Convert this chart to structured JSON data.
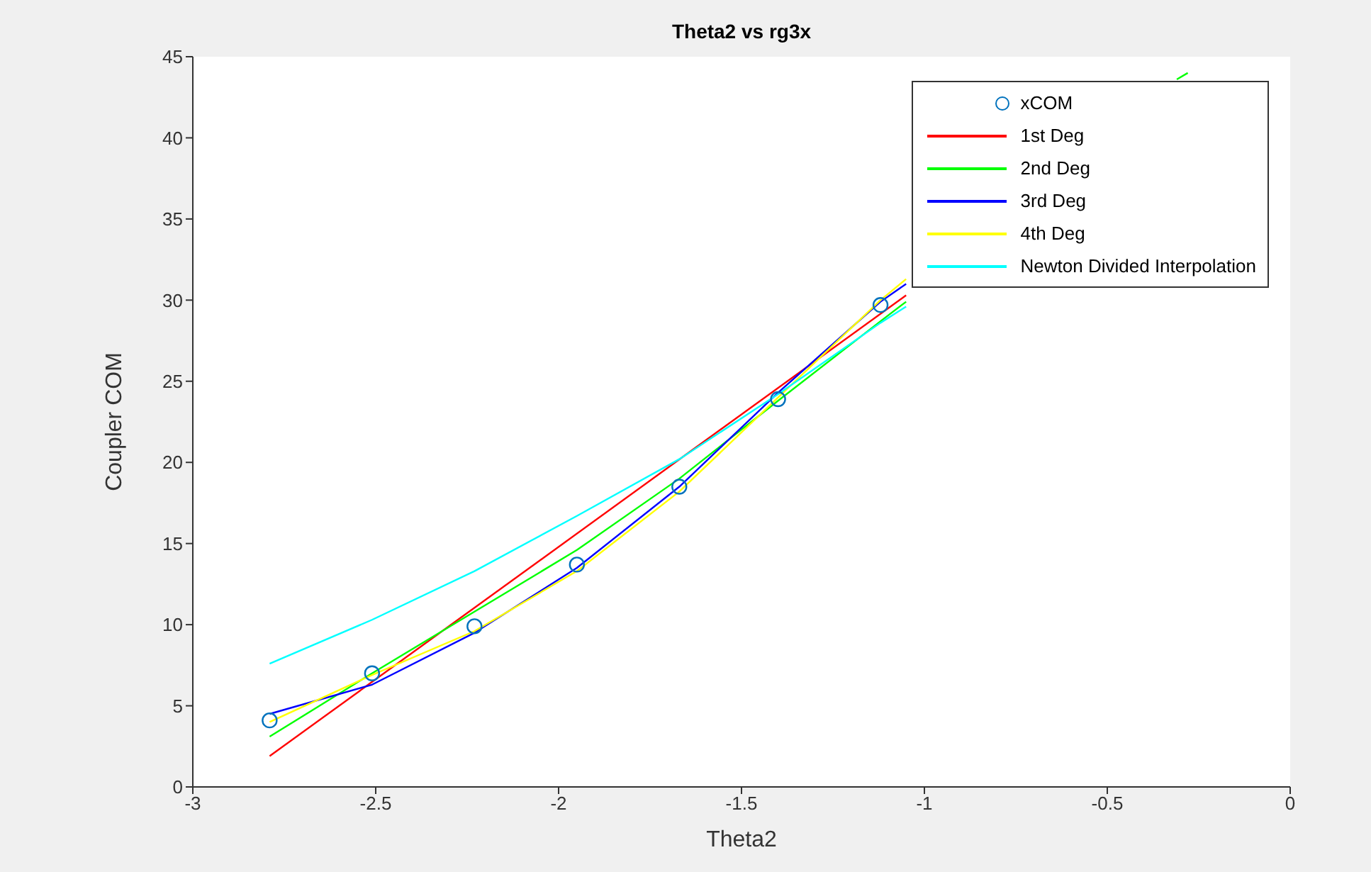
{
  "chart_data": {
    "type": "line",
    "title": "Theta2 vs rg3x",
    "xlabel": "Theta2",
    "ylabel": "Coupler COM",
    "xlim": [
      -3,
      0
    ],
    "xticks": [
      -3,
      -2.5,
      -2,
      -1.5,
      -1,
      -0.5,
      0
    ],
    "ylim": [
      0,
      45
    ],
    "yticks": [
      0,
      5,
      10,
      15,
      20,
      25,
      30,
      35,
      40,
      45
    ],
    "grid": false,
    "legend": "top right",
    "series": [
      {
        "name": "xCOM",
        "type": "scatter",
        "marker": "circle",
        "color": "#0072bd",
        "x": [
          -2.79,
          -2.51,
          -2.23,
          -1.95,
          -1.67,
          -1.4,
          -1.12
        ],
        "values": [
          4.1,
          7.0,
          9.9,
          13.7,
          18.5,
          23.9,
          29.7
        ]
      },
      {
        "name": "1st Deg",
        "color": "#ff0000",
        "x": [
          -2.79,
          -1.05
        ],
        "values": [
          1.9,
          30.3
        ]
      },
      {
        "name": "2nd Deg",
        "color": "#00ff00",
        "x": [
          -2.79,
          -2.51,
          -2.23,
          -1.95,
          -1.67,
          -1.4,
          -1.12,
          -1.05,
          -0.7,
          -0.31,
          -0.28
        ],
        "values": [
          3.1,
          7.0,
          10.8,
          14.6,
          19.0,
          23.8,
          28.7,
          29.9,
          null,
          43.6,
          44.0
        ]
      },
      {
        "name": "3rd Deg",
        "color": "#0000ff",
        "x": [
          -2.79,
          -2.51,
          -2.23,
          -1.95,
          -1.67,
          -1.4,
          -1.12,
          -1.05
        ],
        "values": [
          4.5,
          6.3,
          9.5,
          13.5,
          18.5,
          24.3,
          29.9,
          31.0
        ]
      },
      {
        "name": "4th Deg",
        "color": "#ffff00",
        "x": [
          -2.79,
          -2.51,
          -2.23,
          -1.95,
          -1.67,
          -1.4,
          -1.12,
          -1.05
        ],
        "values": [
          4.0,
          6.9,
          9.6,
          13.3,
          18.2,
          24.0,
          30.0,
          31.3
        ]
      },
      {
        "name": "Newton Divided Interpolation",
        "color": "#00ffff",
        "x": [
          -2.79,
          -2.51,
          -2.23,
          -1.95,
          -1.67,
          -1.4,
          -1.12,
          -1.05
        ],
        "values": [
          7.6,
          10.3,
          13.3,
          16.7,
          20.2,
          24.2,
          28.6,
          29.6
        ]
      }
    ]
  }
}
